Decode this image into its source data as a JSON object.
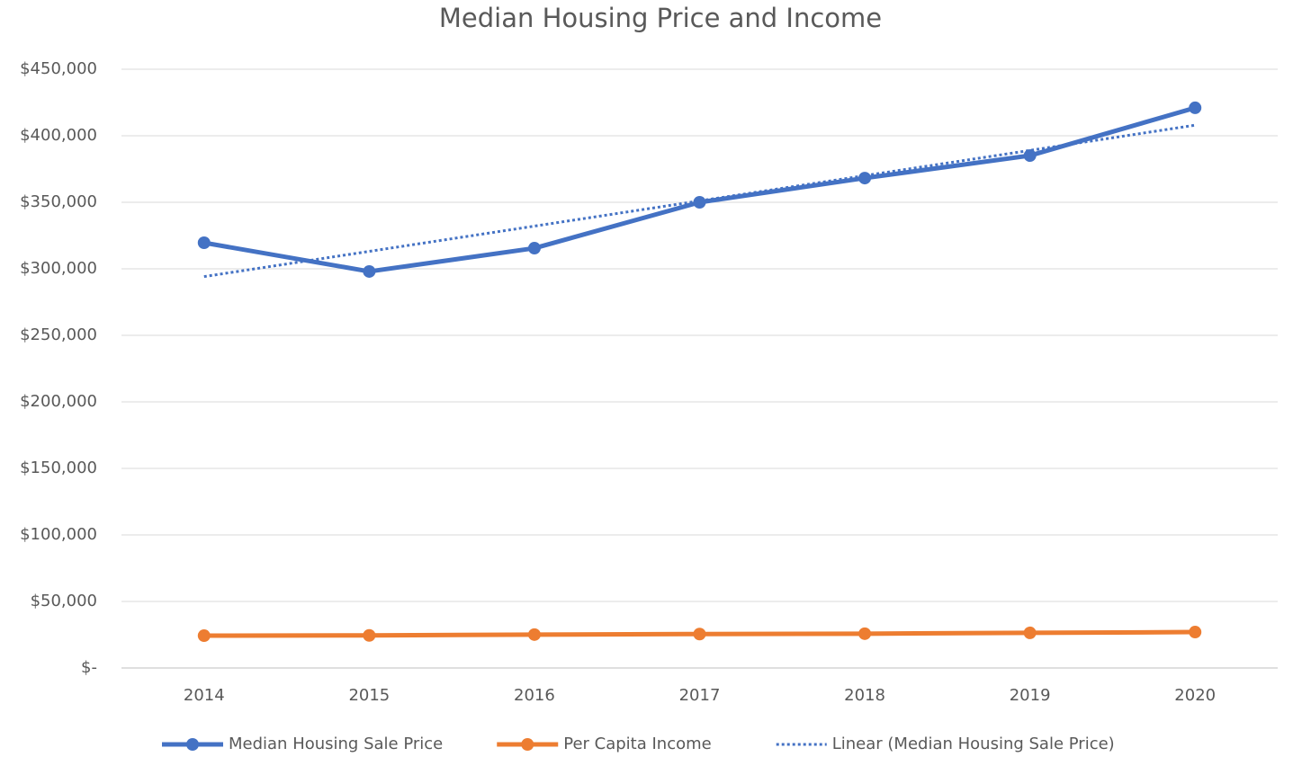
{
  "chart_data": {
    "type": "line",
    "title": "Median Housing Price and Income",
    "categories": [
      "2014",
      "2015",
      "2016",
      "2017",
      "2018",
      "2019",
      "2020"
    ],
    "series": [
      {
        "name": "Median Housing Sale Price",
        "color": "#4472c4",
        "values": [
          319600,
          298000,
          315500,
          350000,
          368200,
          385100,
          421000
        ]
      },
      {
        "name": "Per Capita Income",
        "color": "#ed7d31",
        "values": [
          24300,
          24500,
          25100,
          25500,
          25800,
          26400,
          27000
        ]
      }
    ],
    "trendline": {
      "name": "Linear (Median Housing Sale Price)",
      "type": "linear",
      "series": 0,
      "color": "#4472c4"
    },
    "ylim": [
      0,
      450000
    ],
    "yticks": [
      {
        "value": 0,
        "label": "$-"
      },
      {
        "value": 50000,
        "label": "$50,000"
      },
      {
        "value": 100000,
        "label": "$100,000"
      },
      {
        "value": 150000,
        "label": "$150,000"
      },
      {
        "value": 200000,
        "label": "$200,000"
      },
      {
        "value": 250000,
        "label": "$250,000"
      },
      {
        "value": 300000,
        "label": "$300,000"
      },
      {
        "value": 350000,
        "label": "$350,000"
      },
      {
        "value": 400000,
        "label": "$400,000"
      },
      {
        "value": 450000,
        "label": "$450,000"
      }
    ],
    "grid": true,
    "legend": "bottom"
  }
}
